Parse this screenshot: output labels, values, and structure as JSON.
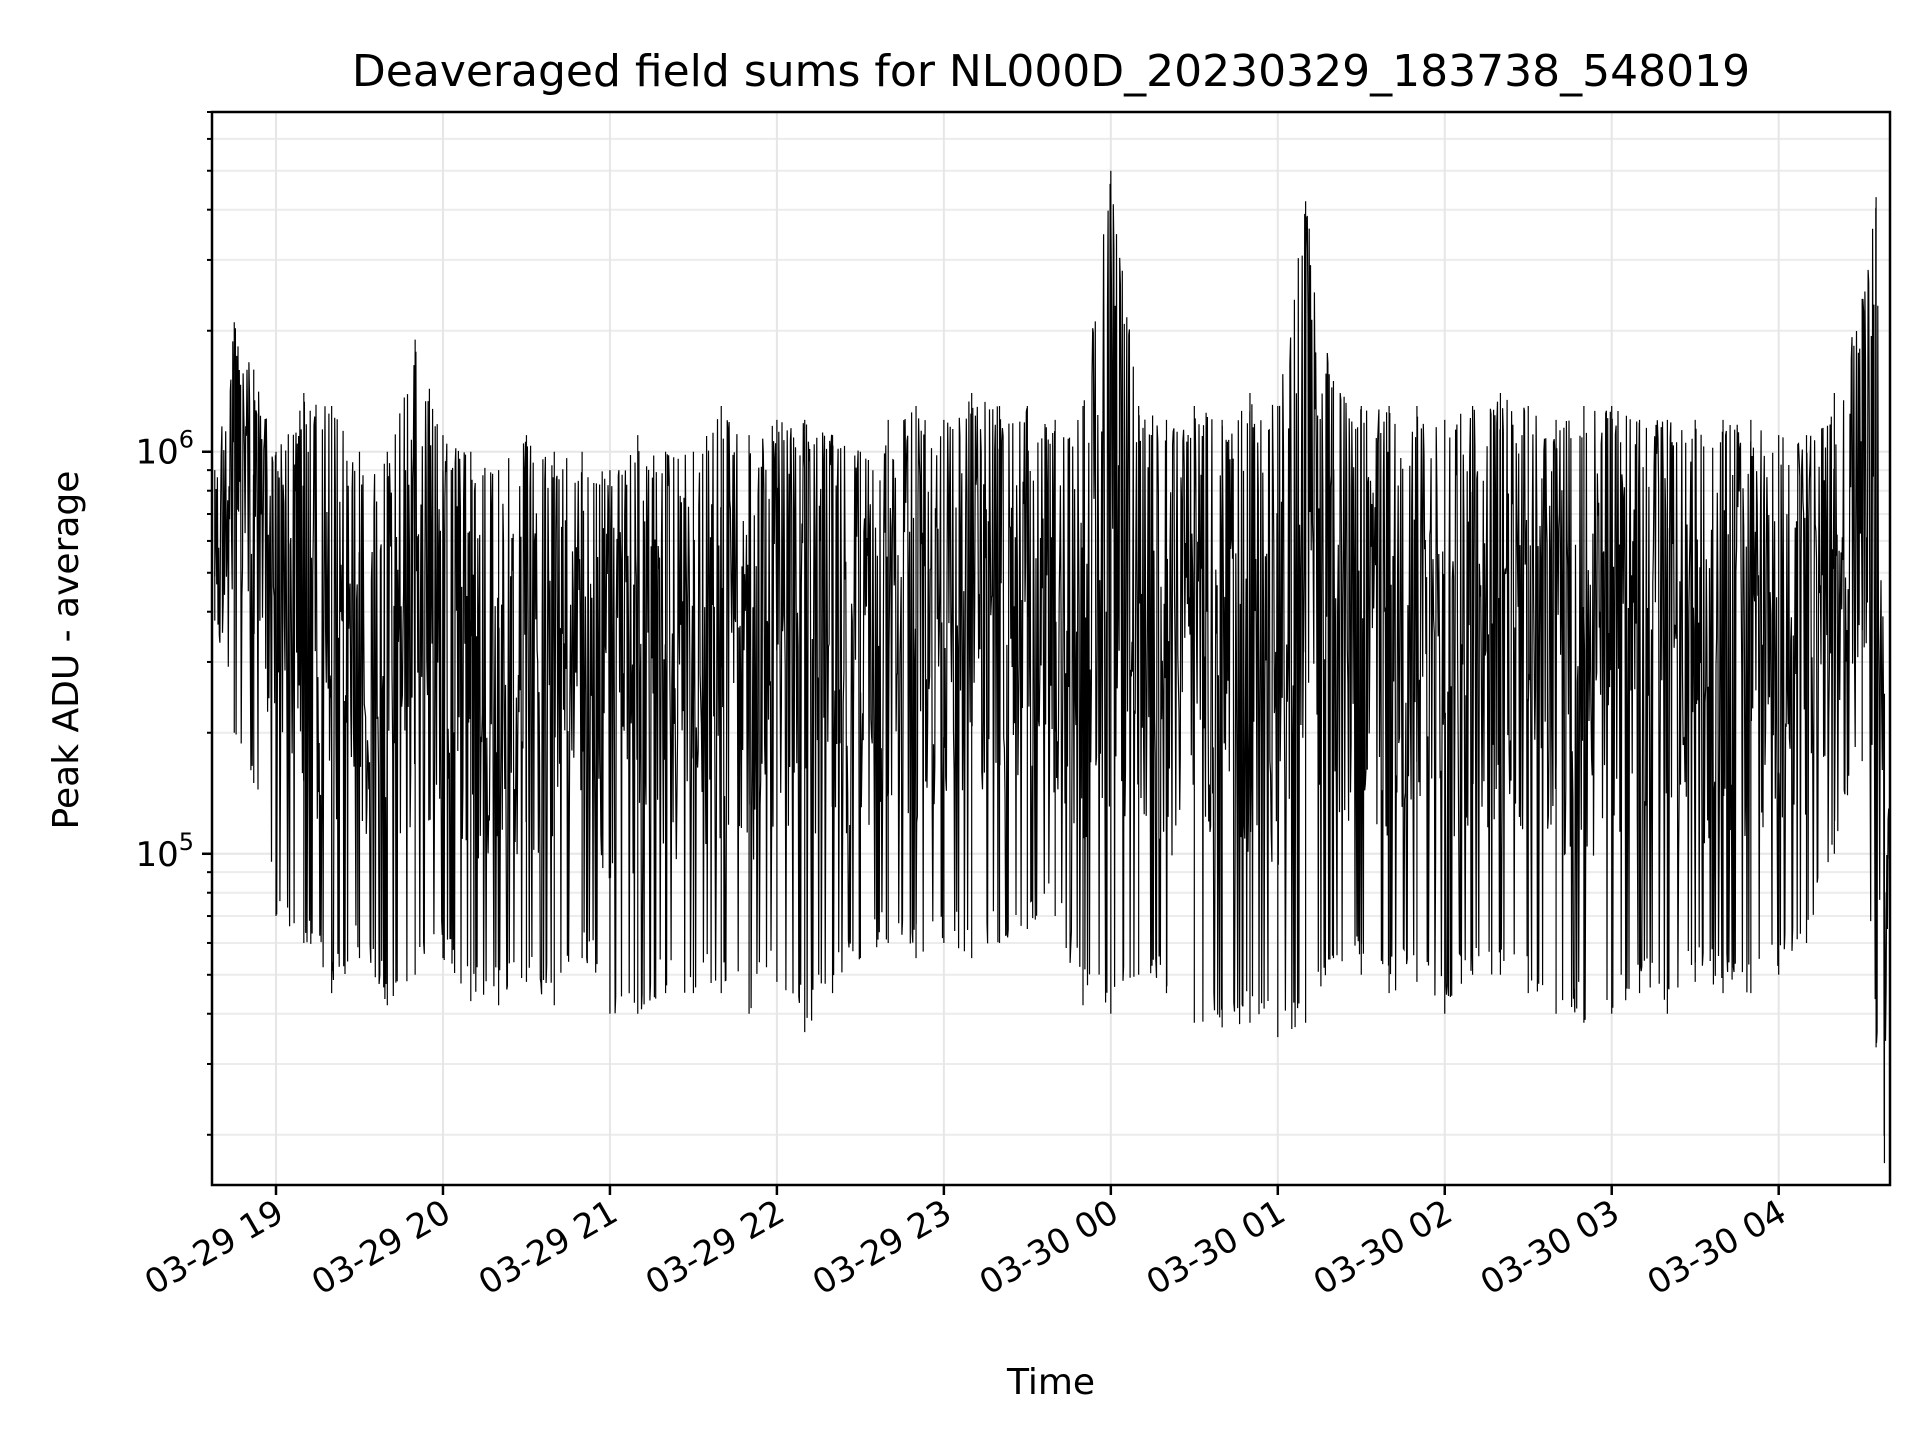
{
  "chart_data": {
    "type": "line",
    "title": "Deaveraged field sums for NL000D_20230329_183738_548019",
    "xlabel": "Time",
    "ylabel": "Peak ADU - average",
    "yscale": "log",
    "grid": true,
    "x_tick_labels": [
      "03-29 19",
      "03-29 20",
      "03-29 21",
      "03-29 22",
      "03-29 23",
      "03-30 00",
      "03-30 01",
      "03-30 02",
      "03-30 03",
      "03-30 04"
    ],
    "y_tick_labels": [
      {
        "base": "10",
        "exp": "5",
        "value": 100000
      },
      {
        "base": "10",
        "exp": "6",
        "value": 1000000
      }
    ],
    "xlim": [
      "2023-03-29 18:37",
      "2023-03-30 04:40"
    ],
    "ylim": [
      15000,
      7000000
    ],
    "line_color": "#000000",
    "series": [
      {
        "x": [
          "2023-03-29 18:38",
          "2023-03-29 18:45",
          "2023-03-29 18:52",
          "2023-03-29 19:00",
          "2023-03-29 19:10",
          "2023-03-29 19:20",
          "2023-03-29 19:30",
          "2023-03-29 19:40",
          "2023-03-29 19:50",
          "2023-03-29 20:00",
          "2023-03-29 20:10",
          "2023-03-29 20:20",
          "2023-03-29 20:30",
          "2023-03-29 20:40",
          "2023-03-29 20:50",
          "2023-03-29 21:00",
          "2023-03-29 21:10",
          "2023-03-29 21:20",
          "2023-03-29 21:30",
          "2023-03-29 21:40",
          "2023-03-29 21:50",
          "2023-03-29 22:00",
          "2023-03-29 22:10",
          "2023-03-29 22:20",
          "2023-03-29 22:30",
          "2023-03-29 22:40",
          "2023-03-29 22:50",
          "2023-03-29 23:00",
          "2023-03-29 23:10",
          "2023-03-29 23:20",
          "2023-03-29 23:30",
          "2023-03-29 23:40",
          "2023-03-29 23:50",
          "2023-03-30 00:00",
          "2023-03-30 00:10",
          "2023-03-30 00:20",
          "2023-03-30 00:30",
          "2023-03-30 00:40",
          "2023-03-30 00:50",
          "2023-03-30 01:00",
          "2023-03-30 01:10",
          "2023-03-30 01:20",
          "2023-03-30 01:30",
          "2023-03-30 01:40",
          "2023-03-30 01:50",
          "2023-03-30 02:00",
          "2023-03-30 02:10",
          "2023-03-30 02:20",
          "2023-03-30 02:30",
          "2023-03-30 02:40",
          "2023-03-30 02:50",
          "2023-03-30 03:00",
          "2023-03-30 03:10",
          "2023-03-30 03:20",
          "2023-03-30 03:30",
          "2023-03-30 03:40",
          "2023-03-30 03:50",
          "2023-03-30 04:00",
          "2023-03-30 04:10",
          "2023-03-30 04:20",
          "2023-03-30 04:30",
          "2023-03-30 04:35",
          "2023-03-30 04:38",
          "2023-03-30 04:40"
        ],
        "peak": [
          900000,
          2100000,
          1600000,
          1000000,
          1400000,
          1300000,
          1000000,
          1000000,
          1900000,
          1100000,
          1000000,
          900000,
          1100000,
          1000000,
          1000000,
          900000,
          1100000,
          1000000,
          1000000,
          1300000,
          1100000,
          1200000,
          1200000,
          1100000,
          1000000,
          1200000,
          1300000,
          1200000,
          1400000,
          1300000,
          1300000,
          1200000,
          1300000,
          5000000,
          1300000,
          1200000,
          1300000,
          1200000,
          1400000,
          1300000,
          4200000,
          1500000,
          1300000,
          1300000,
          1300000,
          1200000,
          1300000,
          1400000,
          1300000,
          1200000,
          1300000,
          1300000,
          1200000,
          1200000,
          1200000,
          1200000,
          1200000,
          1100000,
          1100000,
          1400000,
          2400000,
          4300000,
          250000,
          120000
        ],
        "trough": [
          380000,
          200000,
          150000,
          70000,
          60000,
          45000,
          55000,
          42000,
          50000,
          55000,
          43000,
          42000,
          48000,
          42000,
          55000,
          40000,
          40000,
          45000,
          45000,
          45000,
          40000,
          48000,
          36000,
          45000,
          55000,
          60000,
          55000,
          60000,
          55000,
          60000,
          65000,
          70000,
          42000,
          40000,
          50000,
          45000,
          38000,
          37000,
          38000,
          35000,
          38000,
          55000,
          50000,
          45000,
          48000,
          40000,
          50000,
          50000,
          45000,
          40000,
          38000,
          40000,
          45000,
          40000,
          48000,
          45000,
          45000,
          50000,
          60000,
          100000,
          170000,
          33000,
          17000,
          27000
        ]
      }
    ]
  }
}
